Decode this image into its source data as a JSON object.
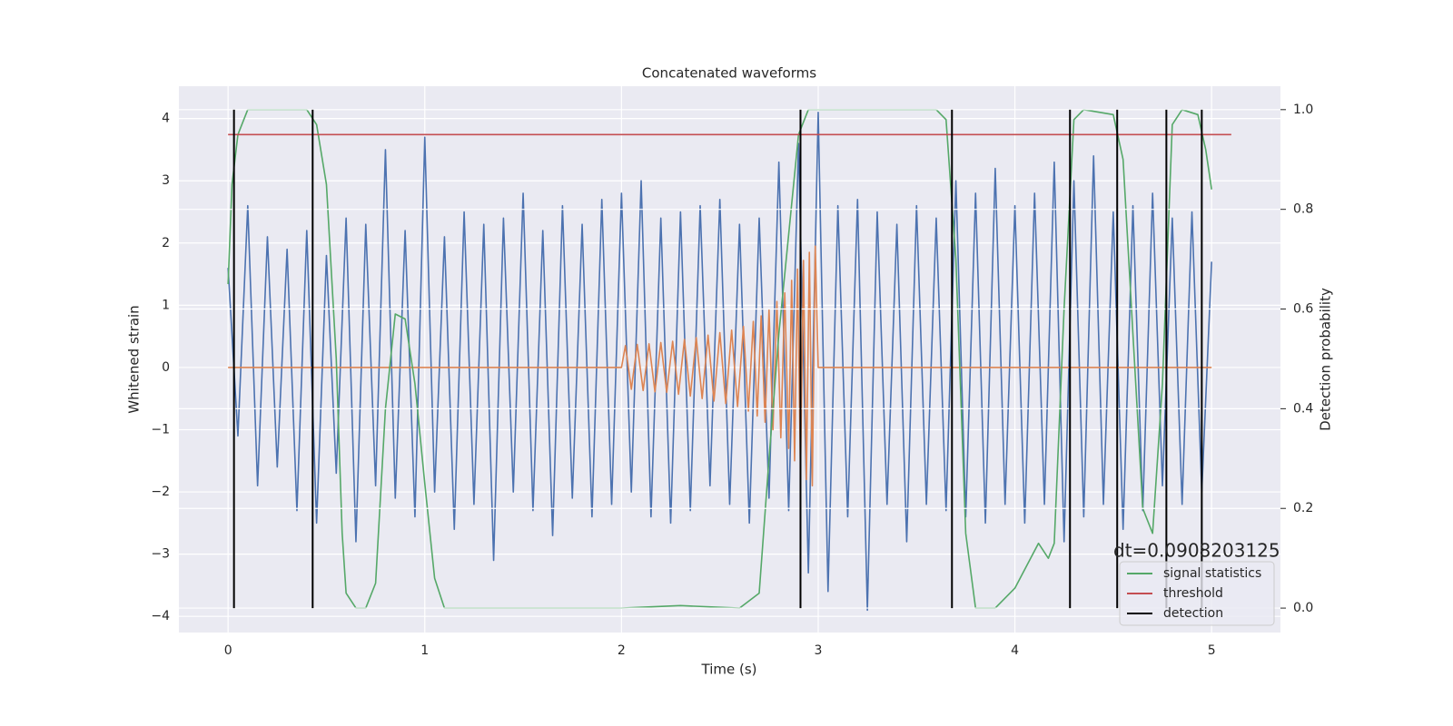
{
  "chart_data": {
    "type": "line",
    "title": "Concatenated waveforms",
    "x_label": "Time (s)",
    "y_label": "Whitened strain",
    "y2_label": "Detection probability",
    "xlim": [
      -0.25,
      5.35
    ],
    "ylim": [
      -4.26,
      4.52
    ],
    "y2lim": [
      -0.049,
      1.047
    ],
    "xticks": [
      0,
      1,
      2,
      3,
      4,
      5
    ],
    "yticks": [
      {
        "value": -4,
        "label": "−4"
      },
      {
        "value": -3,
        "label": "−3"
      },
      {
        "value": -2,
        "label": "−2"
      },
      {
        "value": -1,
        "label": "−1"
      },
      0,
      1,
      2,
      3,
      4
    ],
    "y2ticks": [
      {
        "value": 0,
        "label": "0.0"
      },
      0.2,
      0.4,
      0.6,
      0.8,
      {
        "value": 1,
        "label": "1.0"
      }
    ],
    "grid": true,
    "legend": "lower right",
    "annotation": "dt=0.0908203125",
    "series": [
      {
        "color": "#4c72b0",
        "x": [
          0,
          0.05,
          0.1,
          0.15,
          0.2,
          0.25,
          0.3,
          0.35,
          0.4,
          0.45,
          0.5,
          0.55,
          0.6,
          0.65,
          0.7,
          0.75,
          0.8,
          0.85,
          0.9,
          0.95,
          1,
          1.05,
          1.1,
          1.15,
          1.2,
          1.25,
          1.3,
          1.35,
          1.4,
          1.45,
          1.5,
          1.55,
          1.6,
          1.65,
          1.7,
          1.75,
          1.8,
          1.85,
          1.9,
          1.95,
          2,
          2.05,
          2.1,
          2.15,
          2.2,
          2.25,
          2.3,
          2.35,
          2.4,
          2.45,
          2.5,
          2.55,
          2.6,
          2.65,
          2.7,
          2.75,
          2.8,
          2.85,
          2.9,
          2.95,
          3,
          3.05,
          3.1,
          3.15,
          3.2,
          3.25,
          3.3,
          3.35,
          3.4,
          3.45,
          3.5,
          3.55,
          3.6,
          3.65,
          3.7,
          3.75,
          3.8,
          3.85,
          3.9,
          3.95,
          4,
          4.05,
          4.1,
          4.15,
          4.2,
          4.25,
          4.3,
          4.35,
          4.4,
          4.45,
          4.5,
          4.55,
          4.6,
          4.65,
          4.7,
          4.75,
          4.8,
          4.85,
          4.9,
          4.95,
          5
        ],
        "values": [
          1.6,
          -1.1,
          2.6,
          -1.9,
          2.1,
          -1.6,
          1.9,
          -2.3,
          2.2,
          -2.5,
          1.8,
          -1.7,
          2.4,
          -2.8,
          2.3,
          -1.9,
          3.5,
          -2.1,
          2.2,
          -2.4,
          3.7,
          -2.0,
          2.1,
          -2.6,
          2.5,
          -2.2,
          2.3,
          -3.1,
          2.4,
          -2.0,
          2.8,
          -2.3,
          2.2,
          -2.7,
          2.6,
          -2.1,
          2.3,
          -2.4,
          2.7,
          -2.2,
          2.8,
          -2.0,
          3.0,
          -2.4,
          2.4,
          -2.5,
          2.5,
          -2.3,
          2.6,
          -1.9,
          2.7,
          -2.2,
          2.3,
          -2.5,
          2.4,
          -2.1,
          3.3,
          -2.3,
          3.6,
          -3.3,
          4.1,
          -3.6,
          2.6,
          -2.4,
          2.7,
          -3.9,
          2.5,
          -2.2,
          2.3,
          -2.8,
          2.6,
          -2.2,
          2.4,
          -2.3,
          3.0,
          -2.4,
          2.8,
          -2.5,
          3.2,
          -2.2,
          2.6,
          -2.5,
          2.8,
          -2.2,
          3.3,
          -2.8,
          3.0,
          -2.4,
          3.4,
          -2.2,
          2.5,
          -2.6,
          2.6,
          -2.3,
          2.8,
          -1.9,
          2.4,
          -2.2,
          2.5,
          -2.0,
          1.7
        ]
      },
      {
        "color": "#dd8452",
        "x": [
          0,
          2.0,
          2.02,
          2.05,
          2.08,
          2.11,
          2.14,
          2.17,
          2.2,
          2.23,
          2.26,
          2.29,
          2.32,
          2.35,
          2.38,
          2.41,
          2.44,
          2.47,
          2.5,
          2.53,
          2.56,
          2.59,
          2.62,
          2.645,
          2.67,
          2.69,
          2.71,
          2.73,
          2.75,
          2.77,
          2.79,
          2.81,
          2.83,
          2.85,
          2.865,
          2.88,
          2.895,
          2.91,
          2.925,
          2.94,
          2.955,
          2.97,
          2.985,
          3.0,
          5.0
        ],
        "values": [
          0,
          0,
          0.35,
          -0.35,
          0.37,
          -0.37,
          0.38,
          -0.39,
          0.4,
          -0.4,
          0.42,
          -0.43,
          0.45,
          -0.46,
          0.48,
          -0.5,
          0.52,
          -0.54,
          0.56,
          -0.58,
          0.6,
          -0.63,
          0.66,
          -0.7,
          0.74,
          -0.78,
          0.83,
          -0.88,
          0.93,
          -1.0,
          1.06,
          -1.13,
          1.2,
          -1.3,
          1.4,
          -1.5,
          1.58,
          -1.65,
          1.72,
          -1.8,
          1.85,
          -1.9,
          1.95,
          0,
          0
        ]
      },
      {
        "name": "signal statistics",
        "color": "#55a868",
        "axis": "y2",
        "x": [
          0,
          0.02,
          0.05,
          0.1,
          0.4,
          0.45,
          0.5,
          0.55,
          0.58,
          0.6,
          0.65,
          0.7,
          0.75,
          0.8,
          0.85,
          0.9,
          0.95,
          1.0,
          1.05,
          1.1,
          2.0,
          2.3,
          2.6,
          2.7,
          2.75,
          2.8,
          2.85,
          2.9,
          2.95,
          3.6,
          3.65,
          3.7,
          3.75,
          3.8,
          3.9,
          4.0,
          4.08,
          4.12,
          4.17,
          4.2,
          4.25,
          4.3,
          4.35,
          4.5,
          4.55,
          4.6,
          4.65,
          4.7,
          4.75,
          4.8,
          4.85,
          4.93,
          4.97,
          5.0
        ],
        "values": [
          0.65,
          0.85,
          0.95,
          1.0,
          1.0,
          0.97,
          0.85,
          0.5,
          0.15,
          0.03,
          0.0,
          0.0,
          0.05,
          0.4,
          0.59,
          0.58,
          0.45,
          0.25,
          0.06,
          0.0,
          0.0,
          0.005,
          0.0,
          0.03,
          0.3,
          0.55,
          0.75,
          0.95,
          1.0,
          1.0,
          0.98,
          0.7,
          0.15,
          0.0,
          0.0,
          0.04,
          0.1,
          0.13,
          0.1,
          0.13,
          0.6,
          0.98,
          1.0,
          0.99,
          0.9,
          0.55,
          0.2,
          0.15,
          0.45,
          0.97,
          1.0,
          0.99,
          0.92,
          0.84
        ]
      },
      {
        "name": "threshold",
        "color": "#c44e52",
        "axis": "y2",
        "x": [
          0,
          5.1
        ],
        "values": [
          0.95,
          0.95
        ]
      },
      {
        "name": "detection",
        "color": "#000000",
        "axis": "y2",
        "type": "vlines",
        "x": [
          0.03,
          0.43,
          2.91,
          3.68,
          4.28,
          4.52,
          4.77,
          4.95
        ],
        "ymin": 0,
        "ymax": 1
      }
    ]
  }
}
